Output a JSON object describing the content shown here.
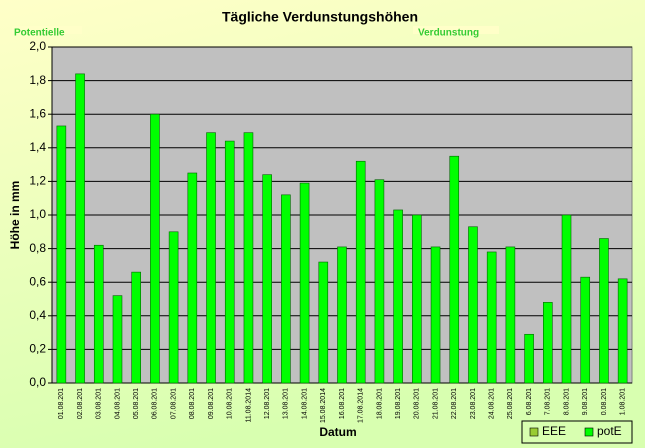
{
  "chart_data": {
    "type": "bar",
    "title": "Tägliche Verdunstungshöhen",
    "ylabel": "Höhe in mm",
    "xlabel": "Datum",
    "annotations": [
      "Potentielle",
      "Verdunstung"
    ],
    "categories": [
      "01.08.201",
      "02.08.201",
      "03.08.201",
      "04.08.201",
      "05.08.201",
      "06.08.201",
      "07.08.201",
      "08.08.201",
      "09.08.201",
      "10.08.201",
      "11.08.2014",
      "12.08.201",
      "13.08.201",
      "14.08.201",
      "15.08.2014",
      "16.08.201",
      "17.08.2014",
      "18.08.201",
      "19.08.201",
      "20.08.201",
      "21.08.201",
      "22.08.201",
      "23.08.201",
      "24.08.201",
      "25.08.201",
      "6.08.201",
      "7.08.201",
      "8.08.201",
      "9.08.201",
      "0.08.201",
      "1.08.201"
    ],
    "series": [
      {
        "name": "potE",
        "color": "#00ff00",
        "values": [
          1.53,
          1.84,
          0.82,
          0.52,
          0.66,
          1.6,
          0.9,
          1.25,
          1.49,
          1.44,
          1.49,
          1.24,
          1.12,
          1.19,
          0.72,
          0.81,
          1.32,
          1.21,
          1.03,
          1.0,
          0.81,
          1.35,
          0.93,
          0.78,
          0.81,
          0.29,
          0.48,
          1.0,
          0.63,
          0.86,
          0.62
        ]
      }
    ],
    "legend": [
      {
        "name": "EEE",
        "color": "#99cc33"
      },
      {
        "name": "potE",
        "color": "#00ff00"
      }
    ],
    "ylim": [
      0,
      2
    ],
    "yticks": [
      {
        "value": 0,
        "label": "0,0"
      },
      {
        "value": 0.2,
        "label": "0,2"
      },
      {
        "value": 0.4,
        "label": "0,4"
      },
      {
        "value": 0.6,
        "label": "0,6"
      },
      {
        "value": 0.8,
        "label": "0,8"
      },
      {
        "value": 1.0,
        "label": "1,0"
      },
      {
        "value": 1.2,
        "label": "1,2"
      },
      {
        "value": 1.4,
        "label": "1,4"
      },
      {
        "value": 1.6,
        "label": "1,6"
      },
      {
        "value": 1.8,
        "label": "1,8"
      },
      {
        "value": 2.0,
        "label": "2,0"
      }
    ],
    "grid": true
  }
}
